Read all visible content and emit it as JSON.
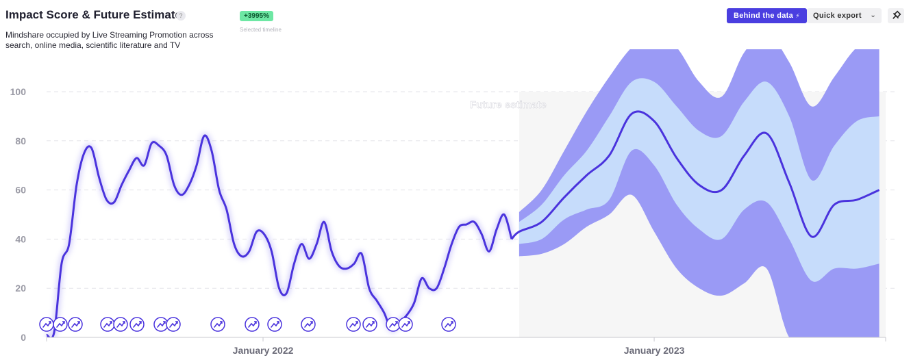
{
  "header": {
    "title": "Impact Score & Future Estimate",
    "help_label": "?",
    "subtitle": "Mindshare occupied by Live Streaming Promotion across search, online media, scientific literature and TV",
    "badge_value": "+3995%",
    "badge_caption": "Selected timeline"
  },
  "toolbar": {
    "behind_label": "Behind the data",
    "export_label": "Quick export"
  },
  "colors": {
    "line": "#4a33dd",
    "band_outer": "#9a9af5",
    "band_inner": "#c6dcfb",
    "future_bg": "#f6f6f6"
  },
  "chart_data": {
    "type": "line",
    "annotation": "Future estimate",
    "ylim": [
      0,
      100
    ],
    "yticks": [
      "0",
      "20",
      "40",
      "60",
      "80",
      "100"
    ],
    "xticks": [
      "January 2022",
      "January 2023"
    ],
    "grid": "horizontal dashed",
    "series": [
      {
        "role": "historical",
        "x": [
          "2021-06-13",
          "2021-06-20",
          "2021-06-27",
          "2021-07-04",
          "2021-07-11",
          "2021-07-18",
          "2021-07-25",
          "2021-08-01",
          "2021-08-08",
          "2021-08-15",
          "2021-08-22",
          "2021-08-29",
          "2021-09-05",
          "2021-09-12",
          "2021-09-19",
          "2021-09-26",
          "2021-10-03",
          "2021-10-10",
          "2021-10-17",
          "2021-10-24",
          "2021-10-31",
          "2021-11-07",
          "2021-11-14",
          "2021-11-21",
          "2021-11-28",
          "2021-12-05",
          "2021-12-12",
          "2021-12-19",
          "2021-12-26",
          "2022-01-02",
          "2022-01-09",
          "2022-01-16",
          "2022-01-23",
          "2022-01-30",
          "2022-02-06",
          "2022-02-13",
          "2022-02-20",
          "2022-02-27",
          "2022-03-06",
          "2022-03-13",
          "2022-03-20",
          "2022-03-27",
          "2022-04-03",
          "2022-04-10",
          "2022-04-17",
          "2022-04-24",
          "2022-05-01",
          "2022-05-08",
          "2022-05-15",
          "2022-05-22",
          "2022-05-29",
          "2022-06-05",
          "2022-06-12",
          "2022-06-19",
          "2022-06-26",
          "2022-07-03",
          "2022-07-10",
          "2022-07-17",
          "2022-07-24",
          "2022-07-31",
          "2022-08-07",
          "2022-08-14",
          "2022-08-21"
        ],
        "values": [
          1,
          2,
          30,
          38,
          62,
          75,
          77,
          65,
          56,
          55,
          62,
          68,
          73,
          70,
          79,
          78,
          74,
          62,
          58,
          62,
          70,
          82,
          76,
          60,
          52,
          38,
          33,
          35,
          43,
          42,
          35,
          20,
          18,
          30,
          38,
          32,
          38,
          47,
          35,
          29,
          28,
          30,
          34,
          20,
          15,
          10,
          3,
          6,
          9,
          14,
          24,
          20,
          20,
          28,
          38,
          45,
          46,
          47,
          42,
          35,
          44,
          50,
          40
        ]
      },
      {
        "role": "forecast",
        "x": [
          "2022-08-28",
          "2022-09-18",
          "2022-10-09",
          "2022-10-30",
          "2022-11-20",
          "2022-12-11",
          "2023-01-01",
          "2023-01-22",
          "2023-02-12",
          "2023-03-05",
          "2023-03-26",
          "2023-04-16",
          "2023-05-07",
          "2023-05-28",
          "2023-06-18",
          "2023-07-09",
          "2023-07-30"
        ],
        "values": [
          43,
          47,
          57,
          66,
          74,
          91,
          88,
          73,
          62,
          60,
          74,
          83,
          63,
          41,
          54,
          56,
          60
        ],
        "inner_low": [
          38,
          40,
          48,
          52,
          56,
          76,
          70,
          54,
          44,
          40,
          52,
          55,
          40,
          23,
          28,
          28,
          30
        ],
        "inner_high": [
          47,
          54,
          66,
          76,
          90,
          104,
          104,
          94,
          84,
          82,
          96,
          104,
          90,
          64,
          78,
          88,
          90
        ],
        "outer_low": [
          33,
          34,
          38,
          45,
          50,
          58,
          43,
          28,
          20,
          17,
          22,
          28,
          0,
          0,
          0,
          0,
          0
        ],
        "outer_high": [
          51,
          60,
          76,
          92,
          106,
          118,
          124,
          118,
          104,
          98,
          116,
          124,
          112,
          94,
          106,
          118,
          122
        ]
      }
    ]
  }
}
